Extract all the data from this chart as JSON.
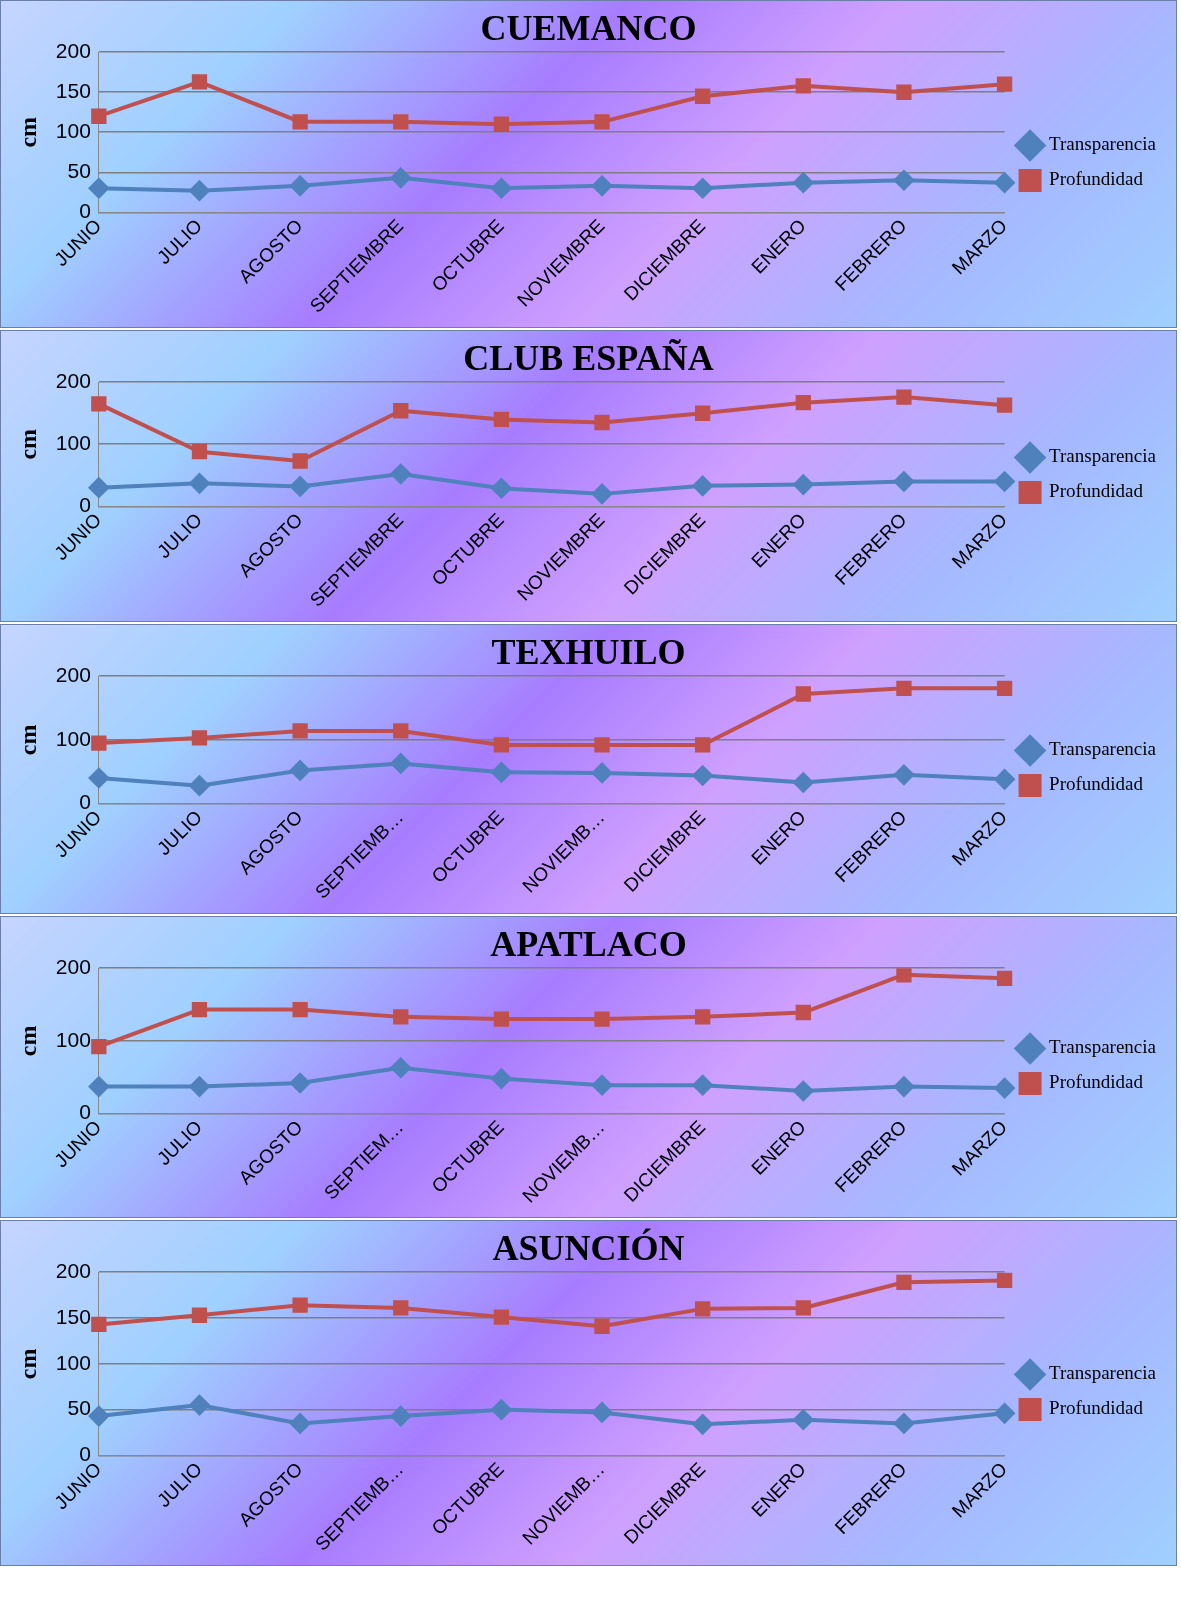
{
  "chart_data": [
    {
      "type": "line",
      "title": "CUEMANCO",
      "ylabel": "cm",
      "categories": [
        "JUNIO",
        "JULIO",
        "AGOSTO",
        "SEPTIEMBRE",
        "OCTUBRE",
        "NOVIEMBRE",
        "DICIEMBRE",
        "ENERO",
        "FEBRERO",
        "MARZO"
      ],
      "ylim": [
        0,
        200
      ],
      "yticks": [
        0,
        50,
        100,
        150,
        200
      ],
      "grid": "y",
      "legend": "right",
      "series": [
        {
          "name": "Transparencia",
          "color": "#4f81bd",
          "marker": "diamond",
          "values": [
            30,
            27,
            33,
            43,
            30,
            33,
            30,
            37,
            40,
            37
          ]
        },
        {
          "name": "Profundidad",
          "color": "#c0504d",
          "marker": "square",
          "values": [
            120,
            163,
            113,
            113,
            110,
            113,
            145,
            158,
            150,
            160
          ]
        }
      ]
    },
    {
      "type": "line",
      "title": "CLUB ESPAÑA",
      "ylabel": "cm",
      "categories": [
        "JUNIO",
        "JULIO",
        "AGOSTO",
        "SEPTIEMBRE",
        "OCTUBRE",
        "NOVIEMBRE",
        "DICIEMBRE",
        "ENERO",
        "FEBRERO",
        "MARZO"
      ],
      "ylim": [
        0,
        200
      ],
      "yticks": [
        0,
        100,
        200
      ],
      "grid": "y",
      "legend": "right",
      "series": [
        {
          "name": "Transparencia",
          "color": "#4f81bd",
          "marker": "diamond",
          "values": [
            30,
            37,
            32,
            52,
            29,
            20,
            33,
            35,
            40,
            40
          ]
        },
        {
          "name": "Profundidad",
          "color": "#c0504d",
          "marker": "square",
          "values": [
            165,
            88,
            73,
            154,
            140,
            135,
            150,
            167,
            176,
            163
          ]
        }
      ]
    },
    {
      "type": "line",
      "title": "TEXHUILO",
      "ylabel": "cm",
      "categories": [
        "JUNIO",
        "JULIO",
        "AGOSTO",
        "SEPTIEMB…",
        "OCTUBRE",
        "NOVIEMB…",
        "DICIEMBRE",
        "ENERO",
        "FEBRERO",
        "MARZO"
      ],
      "ylim": [
        0,
        200
      ],
      "yticks": [
        0,
        100,
        200
      ],
      "grid": "y",
      "legend": "right",
      "series": [
        {
          "name": "Transparencia",
          "color": "#4f81bd",
          "marker": "diamond",
          "values": [
            40,
            28,
            52,
            63,
            49,
            48,
            44,
            33,
            45,
            38
          ]
        },
        {
          "name": "Profundidad",
          "color": "#c0504d",
          "marker": "square",
          "values": [
            95,
            103,
            114,
            114,
            92,
            92,
            92,
            172,
            181,
            181
          ]
        }
      ]
    },
    {
      "type": "line",
      "title": "APATLACO",
      "ylabel": "cm",
      "categories": [
        "JUNIO",
        "JULIO",
        "AGOSTO",
        "SEPTIEM…",
        "OCTUBRE",
        "NOVIEMB…",
        "DICIEMBRE",
        "ENERO",
        "FEBRERO",
        "MARZO"
      ],
      "ylim": [
        0,
        200
      ],
      "yticks": [
        0,
        100,
        200
      ],
      "grid": "y",
      "legend": "right",
      "series": [
        {
          "name": "Transparencia",
          "color": "#4f81bd",
          "marker": "diamond",
          "values": [
            37,
            37,
            42,
            63,
            48,
            39,
            39,
            31,
            37,
            35
          ]
        },
        {
          "name": "Profundidad",
          "color": "#c0504d",
          "marker": "square",
          "values": [
            92,
            143,
            143,
            133,
            130,
            130,
            133,
            139,
            191,
            186
          ]
        }
      ]
    },
    {
      "type": "line",
      "title": "ASUNCIÓN",
      "ylabel": "cm",
      "categories": [
        "JUNIO",
        "JULIO",
        "AGOSTO",
        "SEPTIEMB…",
        "OCTUBRE",
        "NOVIEMB…",
        "DICIEMBRE",
        "ENERO",
        "FEBRERO",
        "MARZO"
      ],
      "ylim": [
        0,
        200
      ],
      "yticks": [
        0,
        50,
        100,
        150,
        200
      ],
      "grid": "y",
      "legend": "right",
      "series": [
        {
          "name": "Transparencia",
          "color": "#4f81bd",
          "marker": "diamond",
          "values": [
            43,
            55,
            35,
            43,
            50,
            47,
            34,
            39,
            35,
            46
          ]
        },
        {
          "name": "Profundidad",
          "color": "#c0504d",
          "marker": "square",
          "values": [
            143,
            153,
            164,
            161,
            151,
            141,
            160,
            161,
            189,
            191
          ]
        }
      ]
    }
  ]
}
